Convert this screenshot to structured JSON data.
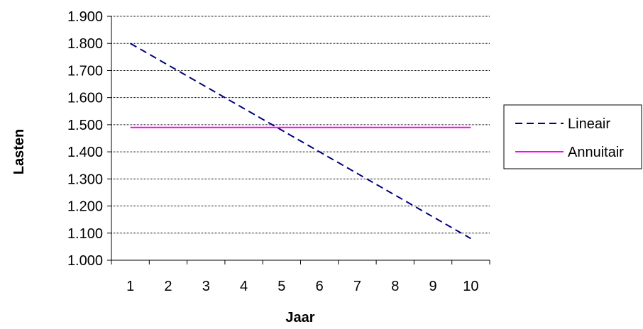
{
  "chart_data": {
    "type": "line",
    "title": "",
    "xlabel": "Jaar",
    "ylabel": "Lasten",
    "x": [
      1,
      2,
      3,
      4,
      5,
      6,
      7,
      8,
      9,
      10
    ],
    "x_tick_labels": [
      "1",
      "2",
      "3",
      "4",
      "5",
      "6",
      "7",
      "8",
      "9",
      "10"
    ],
    "ylim": [
      1000,
      1900
    ],
    "y_ticks": [
      1000,
      1100,
      1200,
      1300,
      1400,
      1500,
      1600,
      1700,
      1800,
      1900
    ],
    "y_tick_labels": [
      "1.000",
      "1.100",
      "1.200",
      "1.300",
      "1.400",
      "1.500",
      "1.600",
      "1.700",
      "1.800",
      "1.900"
    ],
    "grid": "horizontal",
    "legend_position": "right",
    "series": [
      {
        "name": "Lineair",
        "color": "#000080",
        "dash": "dashed",
        "values": [
          1800,
          1720,
          1640,
          1560,
          1480,
          1400,
          1320,
          1240,
          1160,
          1080
        ]
      },
      {
        "name": "Annuitair",
        "color": "#FF00FF",
        "dash": "solid",
        "values": [
          1490,
          1490,
          1490,
          1490,
          1490,
          1490,
          1490,
          1490,
          1490,
          1490
        ]
      }
    ]
  }
}
